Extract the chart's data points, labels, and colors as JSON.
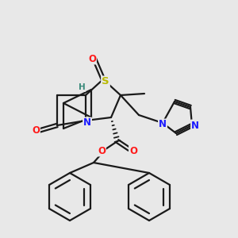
{
  "bg_color": "#e8e8e8",
  "bond_color": "#1a1a1a",
  "bond_width": 1.6,
  "atom_colors": {
    "N": "#1a1aff",
    "O": "#ff1a1a",
    "S": "#b8b800",
    "H": "#3a8a7a",
    "C": "#1a1a1a"
  },
  "font_size_atom": 8.5,
  "font_size_H": 7.5
}
